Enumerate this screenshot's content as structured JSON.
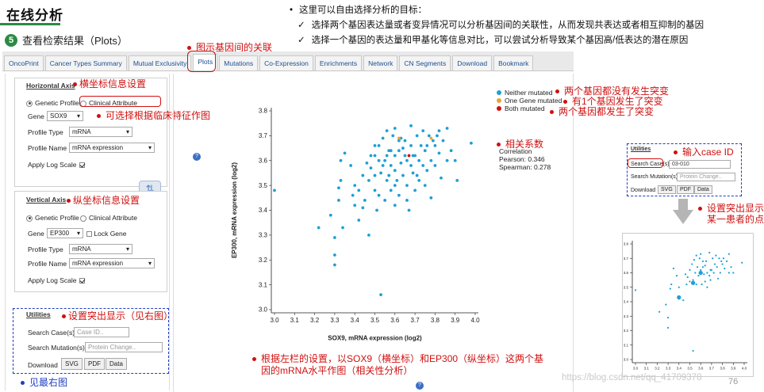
{
  "header": {
    "title": "在线分析",
    "step_num": "5",
    "step_text": "查看检索结果（Plots）"
  },
  "intro": {
    "line1": "这里可以自由选择分析的目标：",
    "line2": "选择两个基因表达量或者变异情况可以分析基因间的关联性，从而发现共表达或者相互抑制的基因",
    "line3": "选择一个基因的表达量和甲基化等信息对比，可以尝试分析导致某个基因高/低表达的潜在原因",
    "check": "✓"
  },
  "tabs": [
    {
      "label": "OncoPrint"
    },
    {
      "label": "Cancer Types Summary"
    },
    {
      "label": "Mutual Exclusivity"
    },
    {
      "label": "Plots"
    },
    {
      "label": "Mutations"
    },
    {
      "label": "Co-Expression"
    },
    {
      "label": "Enrichments"
    },
    {
      "label": "Network"
    },
    {
      "label": "CN Segments"
    },
    {
      "label": "Download"
    },
    {
      "label": "Bookmark"
    }
  ],
  "notes": {
    "plots_tab": "图示基因间的关联",
    "h_axis": "横坐标信息设置",
    "clinical": "可选择根据临床特征作图",
    "v_axis": "纵坐标信息设置",
    "utilities": "设置突出显示（见右图）",
    "see_right": "见最右图",
    "neither": "两个基因都没有发生突变",
    "one": "有1个基因发生了突变",
    "both": "两个基因都发生了突变",
    "correlation": "相关系数",
    "bottom1": "根据左栏的设置，以SOX9（横坐标）和EP300（纵坐标）这两个基",
    "bottom2": "因的mRNA水平作图（相关性分析）",
    "case_id": "输入case ID",
    "highlight1": "设置突出显示",
    "highlight2": "某一患者的点"
  },
  "horizontal": {
    "title": "Horizontal Axis",
    "opt_genetic": "Genetic Profile",
    "opt_clinical": "Clinical Attribute",
    "gene_label": "Gene",
    "gene_value": "SOX9",
    "ptype_label": "Profile Type",
    "ptype_value": "mRNA",
    "pname_label": "Profile Name",
    "pname_value": "mRNA expression",
    "log_label": "Apply Log Scale"
  },
  "vertical": {
    "title": "Vertical Axis",
    "opt_genetic": "Genetic Profile",
    "opt_clinical": "Clinical Attribute",
    "gene_label": "Gene",
    "gene_value": "EP300",
    "lock_label": "Lock Gene",
    "ptype_label": "Profile Type",
    "ptype_value": "mRNA",
    "pname_label": "Profile Name",
    "pname_value": "mRNA expression",
    "log_label": "Apply Log Scale"
  },
  "utilities": {
    "title": "Utilities",
    "search_case_label": "Search Case(s)",
    "search_case_placeholder": "Case ID..",
    "search_mut_label": "Search Mutation(s)",
    "search_mut_placeholder": "Protein Change..",
    "download_label": "Download",
    "svg": "SVG",
    "pdf": "PDF",
    "data": "Data"
  },
  "mini_utilities": {
    "title": "Utilities",
    "search_case_label": "Search Case(s)",
    "search_case_value": "03-010",
    "search_mut_label": "Search Mutation(s)",
    "search_mut_placeholder": "Protein Change..",
    "download_label": "Download",
    "svg": "SVG",
    "pdf": "PDF",
    "data": "Data"
  },
  "legend": {
    "neither": "Neither mutated",
    "one": "One Gene mutated",
    "both": "Both mutated",
    "corr_title": "Correlation",
    "pearson": "Pearson: 0.346",
    "spearman": "Spearman: 0.278",
    "colors": {
      "neither": "#1e9fd8",
      "one": "#e9a437",
      "both": "#d01010"
    }
  },
  "watermark": "https://blog.csdn.net/qq_41709378",
  "page_number": "76",
  "chart_data": [
    {
      "type": "scatter",
      "xlabel": "SOX9, mRNA expression (log2)",
      "ylabel": "EP300, mRNA expression (log2)",
      "xlim": [
        3.0,
        4.0
      ],
      "ylim": [
        3.0,
        3.8
      ],
      "xticks": [
        "3.0",
        "3.1",
        "3.2",
        "3.3",
        "3.4",
        "3.5",
        "3.6",
        "3.7",
        "3.8",
        "3.9",
        "4.0"
      ],
      "yticks": [
        "3.0",
        "3.1",
        "3.2",
        "3.3",
        "3.4",
        "3.5",
        "3.6",
        "3.7",
        "3.8"
      ],
      "series": [
        {
          "name": "Neither mutated",
          "color": "#1e9fd8",
          "points": [
            [
              3.0,
              3.48
            ],
            [
              3.22,
              3.33
            ],
            [
              3.28,
              3.38
            ],
            [
              3.3,
              3.29
            ],
            [
              3.3,
              3.22
            ],
            [
              3.3,
              3.18
            ],
            [
              3.32,
              3.49
            ],
            [
              3.32,
              3.44
            ],
            [
              3.33,
              3.52
            ],
            [
              3.33,
              3.6
            ],
            [
              3.35,
              3.63
            ],
            [
              3.34,
              3.33
            ],
            [
              3.4,
              3.42
            ],
            [
              3.4,
              3.5
            ],
            [
              3.42,
              3.36
            ],
            [
              3.44,
              3.41
            ],
            [
              3.45,
              3.44
            ],
            [
              3.47,
              3.3
            ],
            [
              3.47,
              3.52
            ],
            [
              3.48,
              3.57
            ],
            [
              3.5,
              3.62
            ],
            [
              3.5,
              3.54
            ],
            [
              3.5,
              3.48
            ],
            [
              3.51,
              3.4
            ],
            [
              3.52,
              3.66
            ],
            [
              3.52,
              3.46
            ],
            [
              3.53,
              3.55
            ],
            [
              3.53,
              3.06
            ],
            [
              3.54,
              3.69
            ],
            [
              3.55,
              3.6
            ],
            [
              3.55,
              3.44
            ],
            [
              3.56,
              3.52
            ],
            [
              3.57,
              3.64
            ],
            [
              3.58,
              3.58
            ],
            [
              3.58,
              3.48
            ],
            [
              3.59,
              3.7
            ],
            [
              3.6,
              3.62
            ],
            [
              3.6,
              3.56
            ],
            [
              3.6,
              3.42
            ],
            [
              3.61,
              3.52
            ],
            [
              3.62,
              3.64
            ],
            [
              3.62,
              3.46
            ],
            [
              3.63,
              3.59
            ],
            [
              3.64,
              3.54
            ],
            [
              3.65,
              3.68
            ],
            [
              3.65,
              3.62
            ],
            [
              3.66,
              3.5
            ],
            [
              3.67,
              3.4
            ],
            [
              3.68,
              3.58
            ],
            [
              3.68,
              3.66
            ],
            [
              3.69,
              3.55
            ],
            [
              3.7,
              3.62
            ],
            [
              3.7,
              3.48
            ],
            [
              3.71,
              3.7
            ],
            [
              3.72,
              3.6
            ],
            [
              3.72,
              3.52
            ],
            [
              3.73,
              3.66
            ],
            [
              3.74,
              3.58
            ],
            [
              3.75,
              3.64
            ],
            [
              3.75,
              3.5
            ],
            [
              3.76,
              3.56
            ],
            [
              3.77,
              3.7
            ],
            [
              3.78,
              3.6
            ],
            [
              3.78,
              3.45
            ],
            [
              3.8,
              3.66
            ],
            [
              3.8,
              3.58
            ],
            [
              3.81,
              3.7
            ],
            [
              3.82,
              3.63
            ],
            [
              3.83,
              3.53
            ],
            [
              3.84,
              3.68
            ],
            [
              3.86,
              3.73
            ],
            [
              3.88,
              3.64
            ],
            [
              3.9,
              3.6
            ],
            [
              3.91,
              3.52
            ],
            [
              3.98,
              3.67
            ],
            [
              3.56,
              3.72
            ],
            [
              3.6,
              3.73
            ],
            [
              3.68,
              3.74
            ],
            [
              3.63,
              3.69
            ],
            [
              3.46,
              3.59
            ],
            [
              3.44,
              3.54
            ],
            [
              3.38,
              3.58
            ],
            [
              3.58,
              3.64
            ],
            [
              3.66,
              3.6
            ],
            [
              3.74,
              3.72
            ],
            [
              3.54,
              3.58
            ],
            [
              3.62,
              3.68
            ],
            [
              3.5,
              3.66
            ],
            [
              3.48,
              3.62
            ],
            [
              3.57,
              3.54
            ],
            [
              3.76,
              3.66
            ],
            [
              3.66,
              3.44
            ],
            [
              3.71,
              3.54
            ],
            [
              3.79,
              3.68
            ],
            [
              3.82,
              3.72
            ],
            [
              3.86,
              3.6
            ],
            [
              3.56,
              3.62
            ],
            [
              3.64,
              3.65
            ],
            [
              3.6,
              3.5
            ],
            [
              3.69,
              3.62
            ],
            [
              3.52,
              3.6
            ],
            [
              3.42,
              3.48
            ],
            [
              3.39,
              3.46
            ]
          ]
        },
        {
          "name": "One Gene mutated",
          "color": "#e9a437",
          "points": [
            [
              3.62,
              3.69
            ],
            [
              3.78,
              3.69
            ]
          ]
        },
        {
          "name": "Both mutated",
          "color": "#d01010",
          "points": [
            [
              3.67,
              3.62
            ]
          ]
        }
      ]
    },
    {
      "type": "scatter",
      "xlabel": "",
      "ylabel": "",
      "xlim": [
        3.0,
        4.0
      ],
      "ylim": [
        3.0,
        3.8
      ],
      "xticks": [
        "3.0",
        "3.1",
        "3.2",
        "3.3",
        "3.4",
        "3.5",
        "3.6",
        "3.7",
        "3.8",
        "3.9",
        "4.0"
      ],
      "yticks": [
        "3.0",
        "3.1",
        "3.2",
        "3.3",
        "3.4",
        "3.5",
        "3.6",
        "3.7",
        "3.8"
      ],
      "highlighted_points": [
        [
          3.6,
          3.6
        ],
        [
          3.53,
          3.53
        ],
        [
          3.4,
          3.43
        ]
      ],
      "series": [
        {
          "name": "",
          "color": "#1e9fd8",
          "points": [
            [
              3.0,
              3.48
            ],
            [
              3.22,
              3.33
            ],
            [
              3.28,
              3.38
            ],
            [
              3.3,
              3.29
            ],
            [
              3.3,
              3.22
            ],
            [
              3.32,
              3.49
            ],
            [
              3.33,
              3.52
            ],
            [
              3.35,
              3.63
            ],
            [
              3.4,
              3.42
            ],
            [
              3.4,
              3.5
            ],
            [
              3.44,
              3.41
            ],
            [
              3.47,
              3.52
            ],
            [
              3.48,
              3.57
            ],
            [
              3.5,
              3.62
            ],
            [
              3.5,
              3.54
            ],
            [
              3.52,
              3.66
            ],
            [
              3.53,
              3.55
            ],
            [
              3.53,
              3.06
            ],
            [
              3.54,
              3.69
            ],
            [
              3.55,
              3.6
            ],
            [
              3.56,
              3.52
            ],
            [
              3.57,
              3.64
            ],
            [
              3.58,
              3.58
            ],
            [
              3.59,
              3.7
            ],
            [
              3.6,
              3.62
            ],
            [
              3.61,
              3.52
            ],
            [
              3.62,
              3.64
            ],
            [
              3.63,
              3.59
            ],
            [
              3.64,
              3.54
            ],
            [
              3.65,
              3.68
            ],
            [
              3.66,
              3.5
            ],
            [
              3.68,
              3.58
            ],
            [
              3.69,
              3.55
            ],
            [
              3.7,
              3.62
            ],
            [
              3.71,
              3.7
            ],
            [
              3.72,
              3.6
            ],
            [
              3.73,
              3.66
            ],
            [
              3.75,
              3.64
            ],
            [
              3.76,
              3.56
            ],
            [
              3.77,
              3.7
            ],
            [
              3.78,
              3.6
            ],
            [
              3.8,
              3.66
            ],
            [
              3.81,
              3.7
            ],
            [
              3.82,
              3.63
            ],
            [
              3.84,
              3.68
            ],
            [
              3.86,
              3.73
            ],
            [
              3.88,
              3.64
            ],
            [
              3.9,
              3.6
            ],
            [
              3.98,
              3.67
            ],
            [
              3.56,
              3.72
            ],
            [
              3.6,
              3.73
            ],
            [
              3.68,
              3.74
            ],
            [
              3.46,
              3.59
            ],
            [
              3.38,
              3.58
            ],
            [
              3.66,
              3.6
            ],
            [
              3.74,
              3.72
            ],
            [
              3.62,
              3.68
            ],
            [
              3.79,
              3.68
            ],
            [
              3.86,
              3.6
            ],
            [
              3.64,
              3.65
            ],
            [
              3.69,
              3.62
            ]
          ]
        }
      ]
    }
  ]
}
